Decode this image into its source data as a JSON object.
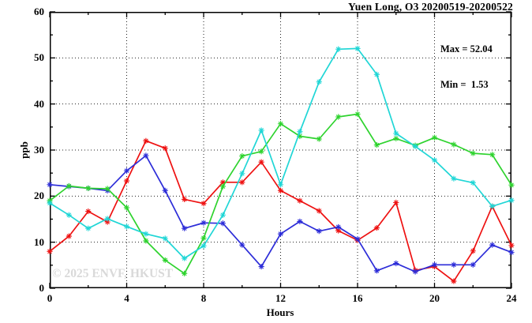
{
  "title": "Yuen Long, O3 20200519-20200522",
  "annotation": {
    "max_label": "Max = 52.04",
    "min_label": "Min =  1.53"
  },
  "watermark": "© 2025 ENVF, HKUST",
  "axes": {
    "ylabel": "ppb",
    "xlabel": "Hours"
  },
  "chart_data": {
    "type": "line",
    "title": "Yuen Long, O3 20200519-20200522",
    "xlabel": "Hours",
    "ylabel": "ppb",
    "xlim": [
      0,
      24
    ],
    "ylim": [
      0,
      60
    ],
    "grid": true,
    "legend": false,
    "x_ticks": [
      0,
      4,
      8,
      12,
      16,
      20,
      24
    ],
    "x_tick_labels": [
      "0",
      "4",
      "8",
      "12",
      "16",
      "20",
      "24"
    ],
    "x_minor_ticks": [
      2,
      6,
      10,
      14,
      18,
      22
    ],
    "y_ticks": [
      0,
      10,
      20,
      30,
      40,
      50,
      60
    ],
    "y_tick_labels": [
      "0",
      "10",
      "20",
      "30",
      "40",
      "50",
      "60"
    ],
    "y_minor_ticks": [
      5,
      15,
      25,
      35,
      45,
      55
    ],
    "grid_x": [
      4,
      8,
      12,
      16,
      20
    ],
    "grid_y": [
      10,
      20,
      30,
      40,
      50
    ],
    "x": [
      0,
      1,
      2,
      3,
      4,
      5,
      6,
      7,
      8,
      9,
      10,
      11,
      12,
      13,
      14,
      15,
      16,
      17,
      18,
      19,
      20,
      21,
      22,
      23,
      24
    ],
    "series": [
      {
        "name": "series-1-red",
        "color": "#ee1111",
        "values": [
          8.0,
          11.3,
          16.7,
          14.4,
          23.3,
          32.0,
          30.4,
          19.3,
          18.4,
          23.0,
          23.0,
          27.4,
          21.2,
          19.0,
          16.8,
          12.5,
          10.4,
          13.1,
          18.6,
          3.9,
          4.7,
          1.53,
          8.1,
          17.8,
          9.3
        ]
      },
      {
        "name": "series-2-blue",
        "color": "#2c2cd8",
        "values": [
          22.5,
          22.1,
          21.7,
          21.2,
          25.5,
          28.8,
          21.2,
          13.0,
          14.2,
          14.1,
          9.4,
          4.7,
          11.8,
          14.5,
          12.4,
          13.3,
          10.7,
          3.8,
          5.4,
          3.6,
          5.1,
          5.1,
          5.1,
          9.4,
          7.8
        ]
      },
      {
        "name": "series-3-green",
        "color": "#2ed32e",
        "values": [
          19.0,
          22.2,
          21.7,
          21.6,
          17.5,
          10.3,
          6.1,
          3.2,
          10.9,
          22.1,
          28.7,
          29.7,
          35.7,
          33.0,
          32.4,
          37.2,
          37.8,
          31.1,
          32.5,
          31.0,
          32.7,
          31.2,
          29.3,
          29.0,
          22.4
        ]
      },
      {
        "name": "series-4-cyan",
        "color": "#20d6d6",
        "values": [
          18.5,
          15.9,
          13.0,
          15.1,
          13.4,
          11.8,
          10.8,
          6.5,
          9.2,
          15.9,
          24.9,
          34.3,
          22.5,
          34.0,
          44.8,
          51.9,
          52.04,
          46.4,
          33.6,
          30.8,
          27.8,
          23.8,
          22.9,
          17.8,
          19.1
        ]
      }
    ],
    "stats": {
      "max": 52.04,
      "min": 1.53
    }
  }
}
